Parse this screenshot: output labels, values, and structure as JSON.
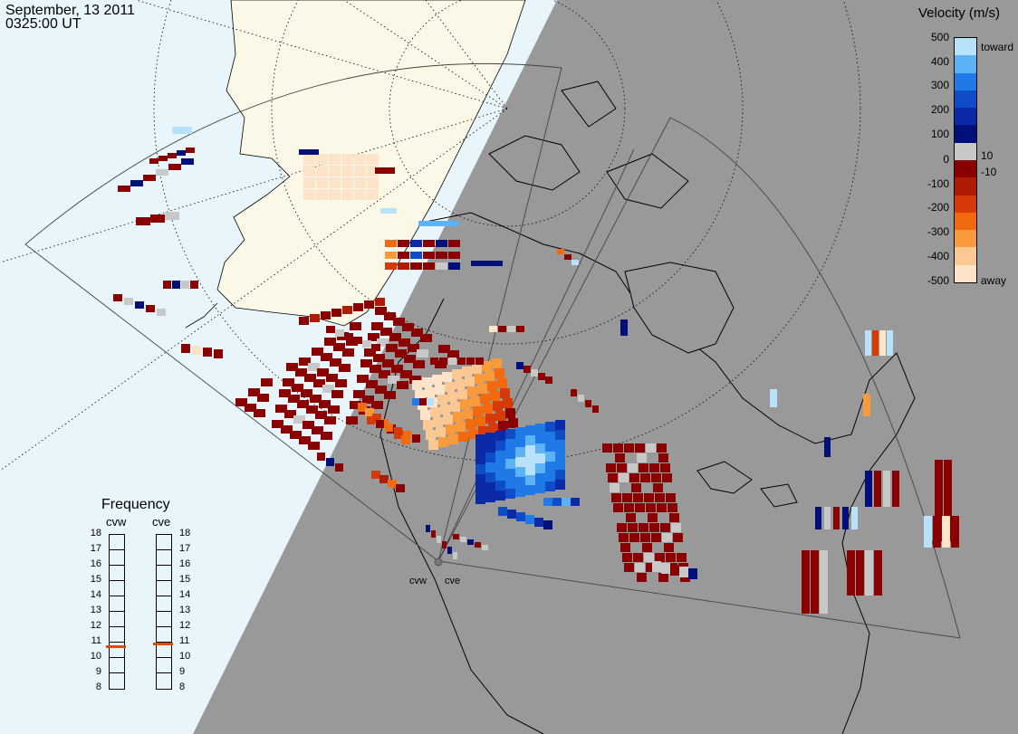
{
  "header": {
    "date": "September, 13 2011",
    "time": "0325:00 UT"
  },
  "colorbar": {
    "title": "Velocity (m/s)",
    "ticks": [
      "500",
      "400",
      "300",
      "200",
      "100",
      "0",
      "-100",
      "-200",
      "-300",
      "-400",
      "-500"
    ],
    "near_zero": [
      "10",
      "-10"
    ],
    "toward_label": "toward",
    "away_label": "away",
    "colors": [
      "#fde4c8",
      "#fbc894",
      "#f99a3c",
      "#f26a10",
      "#d63a08",
      "#b01b04",
      "#8a0000",
      "#c8c8c8",
      "#000f7a",
      "#0a2aa8",
      "#0f4cc8",
      "#1f79e6",
      "#5cb2f4",
      "#b8e2fa"
    ]
  },
  "frequency": {
    "title": "Frequency",
    "radars": [
      {
        "name": "cvw",
        "value_mhz": 10.7
      },
      {
        "name": "cve",
        "value_mhz": 10.9
      }
    ],
    "ticks": [
      "18",
      "17",
      "16",
      "15",
      "14",
      "13",
      "12",
      "11",
      "10",
      "9",
      "8"
    ],
    "range": [
      8,
      18
    ],
    "marker_color": "#e04a10"
  },
  "map": {
    "radar_sites": [
      "cvw",
      "cve"
    ],
    "ocean_color": "#e8f6fc",
    "night_color": "#999999",
    "land_day_color": "#fbf8e8"
  }
}
